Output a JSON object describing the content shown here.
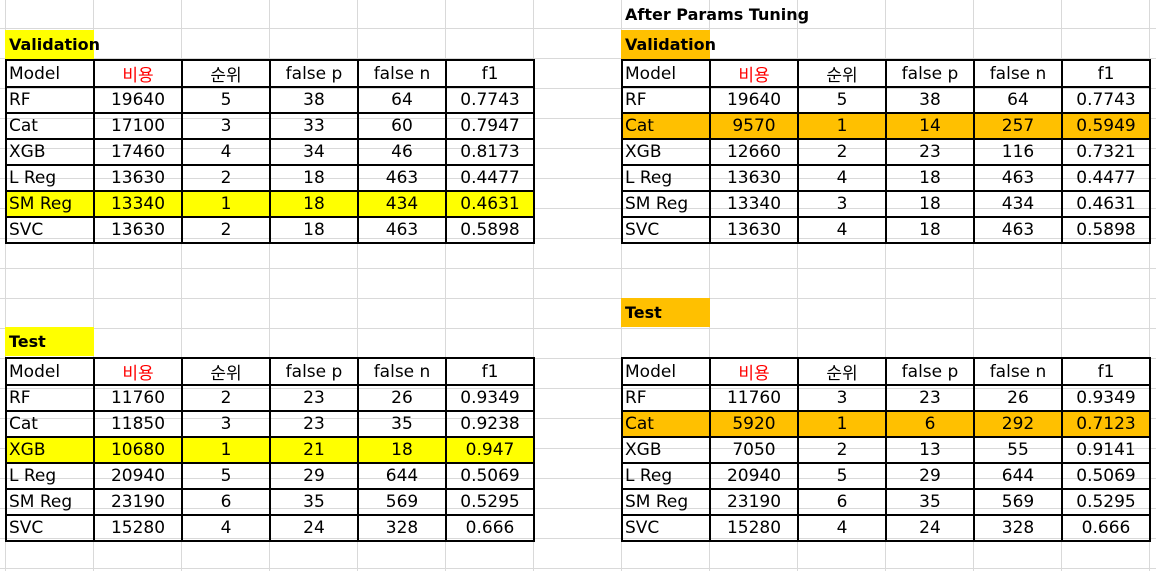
{
  "title": "After Params Tuning",
  "headers": [
    "Model",
    "비용",
    "순위",
    "false p",
    "false n",
    "f1"
  ],
  "left": {
    "validation": {
      "label": "Validation",
      "highlight_row": 4,
      "rows": [
        [
          "RF",
          "19640",
          "5",
          "38",
          "64",
          "0.7743"
        ],
        [
          "Cat",
          "17100",
          "3",
          "33",
          "60",
          "0.7947"
        ],
        [
          "XGB",
          "17460",
          "4",
          "34",
          "46",
          "0.8173"
        ],
        [
          "L Reg",
          "13630",
          "2",
          "18",
          "463",
          "0.4477"
        ],
        [
          "SM Reg",
          "13340",
          "1",
          "18",
          "434",
          "0.4631"
        ],
        [
          "SVC",
          "13630",
          "2",
          "18",
          "463",
          "0.5898"
        ]
      ]
    },
    "test": {
      "label": "Test",
      "highlight_row": 2,
      "rows": [
        [
          "RF",
          "11760",
          "2",
          "23",
          "26",
          "0.9349"
        ],
        [
          "Cat",
          "11850",
          "3",
          "23",
          "35",
          "0.9238"
        ],
        [
          "XGB",
          "10680",
          "1",
          "21",
          "18",
          "0.947"
        ],
        [
          "L Reg",
          "20940",
          "5",
          "29",
          "644",
          "0.5069"
        ],
        [
          "SM Reg",
          "23190",
          "6",
          "35",
          "569",
          "0.5295"
        ],
        [
          "SVC",
          "15280",
          "4",
          "24",
          "328",
          "0.666"
        ]
      ]
    }
  },
  "right": {
    "validation": {
      "label": "Validation",
      "highlight_row": 1,
      "rows": [
        [
          "RF",
          "19640",
          "5",
          "38",
          "64",
          "0.7743"
        ],
        [
          "Cat",
          "9570",
          "1",
          "14",
          "257",
          "0.5949"
        ],
        [
          "XGB",
          "12660",
          "2",
          "23",
          "116",
          "0.7321"
        ],
        [
          "L Reg",
          "13630",
          "4",
          "18",
          "463",
          "0.4477"
        ],
        [
          "SM Reg",
          "13340",
          "3",
          "18",
          "434",
          "0.4631"
        ],
        [
          "SVC",
          "13630",
          "4",
          "18",
          "463",
          "0.5898"
        ]
      ]
    },
    "test": {
      "label": "Test",
      "highlight_row": 1,
      "rows": [
        [
          "RF",
          "11760",
          "3",
          "23",
          "26",
          "0.9349"
        ],
        [
          "Cat",
          "5920",
          "1",
          "6",
          "292",
          "0.7123"
        ],
        [
          "XGB",
          "7050",
          "2",
          "13",
          "55",
          "0.9141"
        ],
        [
          "L Reg",
          "20940",
          "5",
          "29",
          "644",
          "0.5069"
        ],
        [
          "SM Reg",
          "23190",
          "6",
          "35",
          "569",
          "0.5295"
        ],
        [
          "SVC",
          "15280",
          "4",
          "24",
          "328",
          "0.666"
        ]
      ]
    }
  },
  "colors": {
    "yellow_highlight": "#ffff00",
    "orange_highlight": "#ffc000",
    "cost_header": "#ff0000"
  }
}
